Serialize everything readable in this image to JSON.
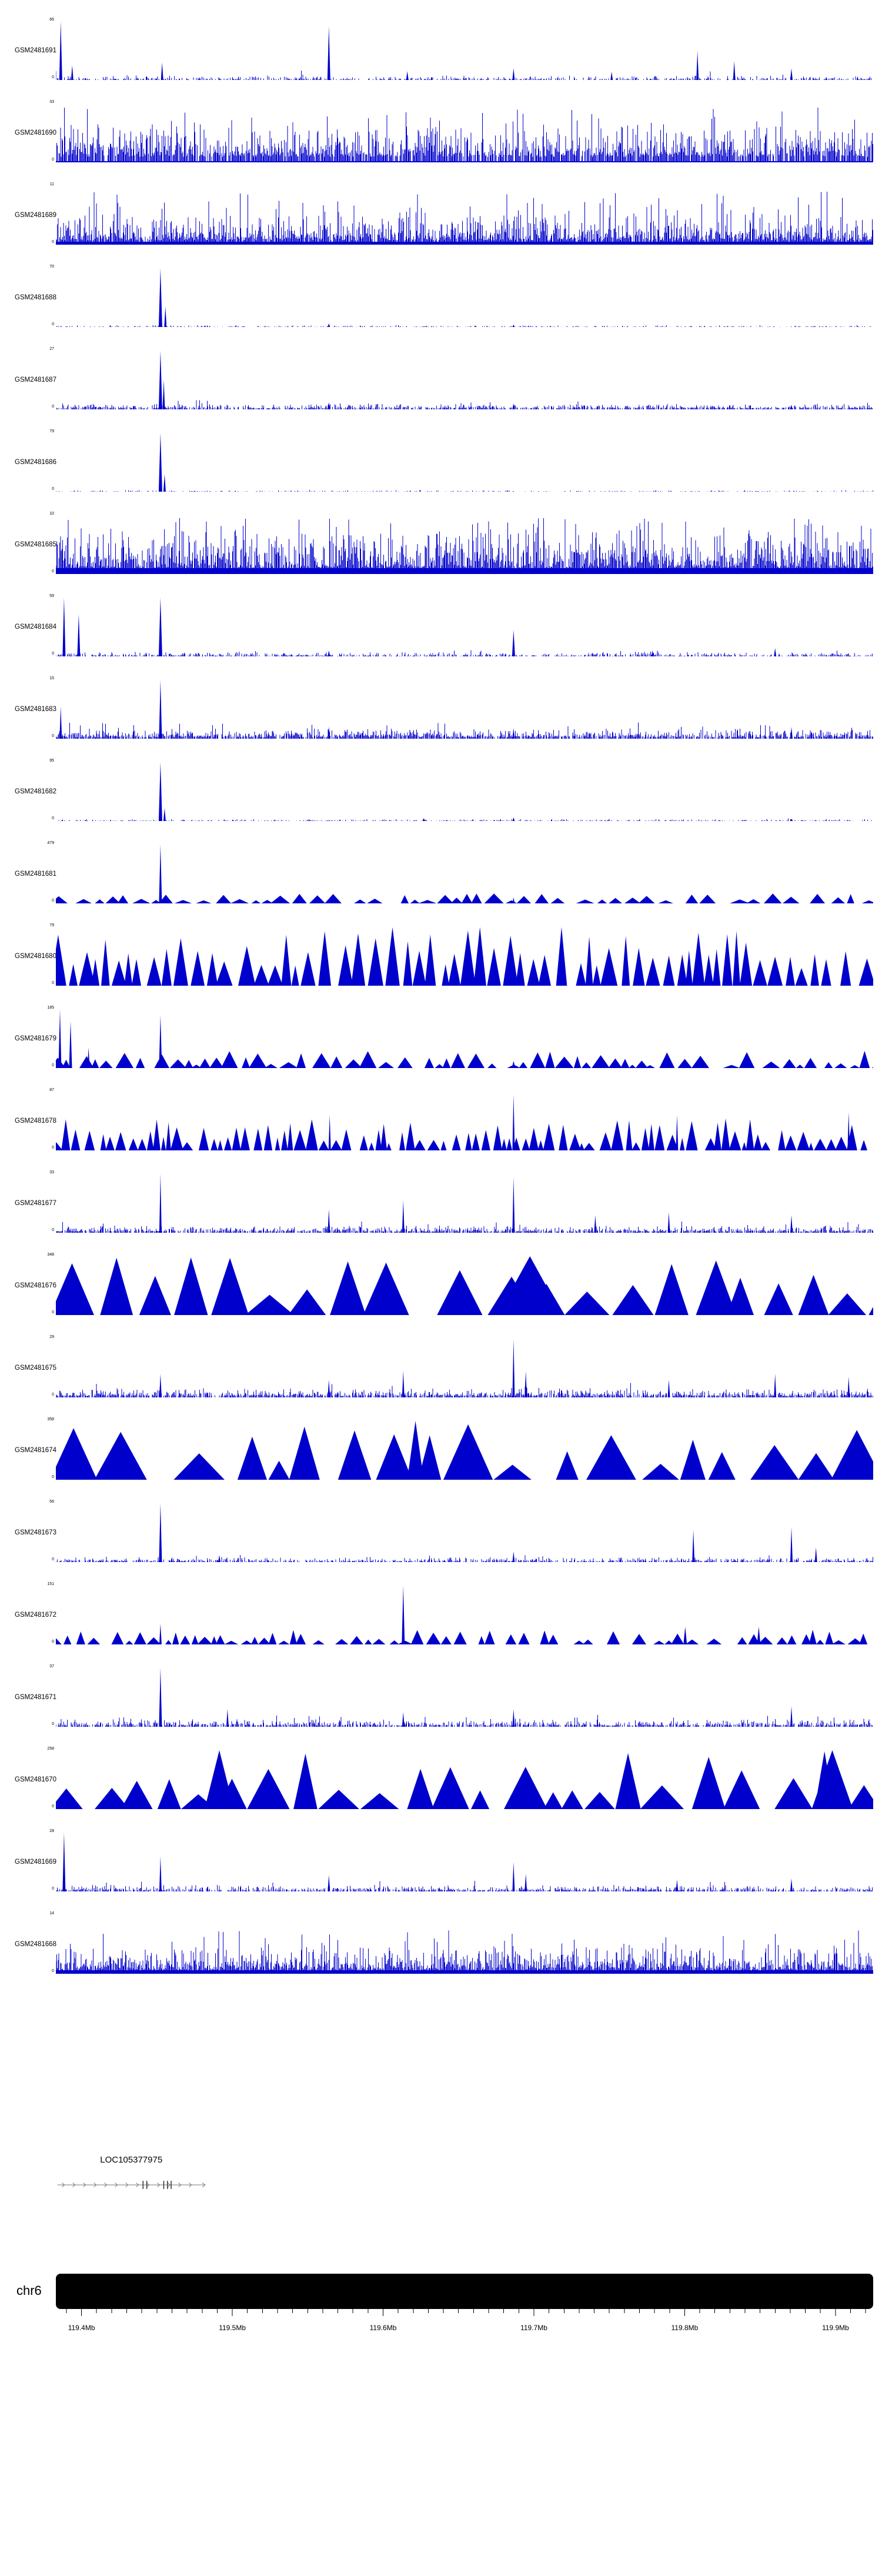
{
  "figure": {
    "background": "#ffffff",
    "signal_color": "#0000CC",
    "gene_color": "#7a7a7a",
    "exon_color": "#333333",
    "ideogram_color": "#000000"
  },
  "chart_data": {
    "type": "area",
    "description": "Genome browser read-coverage tracks over chr6 ~119.38-119.93 Mb for 24 GEO samples, with gene annotation and chromosome axis",
    "legend": "none",
    "grid": false,
    "x_axis": {
      "range_mb": [
        119.383,
        119.925
      ],
      "unit": "Mb",
      "ticks": [
        {
          "mb": 119.4,
          "label": "119.4Mb"
        },
        {
          "mb": 119.5,
          "label": "119.5Mb"
        },
        {
          "mb": 119.6,
          "label": "119.6Mb"
        },
        {
          "mb": 119.7,
          "label": "119.7Mb"
        },
        {
          "mb": 119.8,
          "label": "119.8Mb"
        },
        {
          "mb": 119.9,
          "label": "119.9Mb"
        }
      ],
      "minor_tick_step_mb": 0.01
    },
    "chromosome": {
      "name": "chr6"
    },
    "gene_track": {
      "label": "LOC105377975",
      "start_mb": 119.384,
      "end_mb": 119.482,
      "strand": "+",
      "exon_fracs": [
        0.58,
        0.605,
        0.72,
        0.745,
        0.77
      ]
    },
    "tracks": [
      {
        "id": "GSM2481691",
        "ymax": "66",
        "ymin": "0",
        "seed": 101,
        "noise": {
          "density": 0.5,
          "amp": 0.045,
          "spike_p": 0.012,
          "spike_amp": 0.18
        },
        "peaks": [
          {
            "x": 0.006,
            "h": 1.0,
            "w": 2.5
          },
          {
            "x": 0.02,
            "h": 0.25,
            "w": 2
          },
          {
            "x": 0.13,
            "h": 0.3,
            "w": 2
          },
          {
            "x": 0.334,
            "h": 0.92,
            "w": 2.5
          },
          {
            "x": 0.43,
            "h": 0.15,
            "w": 2
          },
          {
            "x": 0.56,
            "h": 0.2,
            "w": 2
          },
          {
            "x": 0.68,
            "h": 0.14,
            "w": 2
          },
          {
            "x": 0.785,
            "h": 0.5,
            "w": 2
          },
          {
            "x": 0.83,
            "h": 0.32,
            "w": 2
          },
          {
            "x": 0.9,
            "h": 0.2,
            "w": 2
          }
        ]
      },
      {
        "id": "GSM2481690",
        "ymax": "33",
        "ymin": "0",
        "seed": 102,
        "base": 0.02,
        "noise": {
          "density": 0.88,
          "amp": 0.38,
          "spike_p": 0.05,
          "spike_amp": 0.95
        }
      },
      {
        "id": "GSM2481689",
        "ymax": "11",
        "ymin": "0",
        "seed": 103,
        "base": 0.05,
        "noise": {
          "density": 0.92,
          "amp": 0.3,
          "spike_p": 0.07,
          "spike_amp": 0.9
        }
      },
      {
        "id": "GSM2481688",
        "ymax": "70",
        "ymin": "0",
        "seed": 104,
        "noise": {
          "density": 0.35,
          "amp": 0.018,
          "spike_p": 0.004,
          "spike_amp": 0.06
        },
        "peaks": [
          {
            "x": 0.128,
            "h": 1.0,
            "w": 3
          },
          {
            "x": 0.134,
            "h": 0.35,
            "w": 2
          },
          {
            "x": 0.334,
            "h": 0.06,
            "w": 2
          },
          {
            "x": 0.56,
            "h": 0.04,
            "w": 2
          }
        ]
      },
      {
        "id": "GSM2481687",
        "ymax": "27",
        "ymin": "0",
        "seed": 105,
        "noise": {
          "density": 0.7,
          "amp": 0.06,
          "spike_p": 0.02,
          "spike_amp": 0.16
        },
        "peaks": [
          {
            "x": 0.128,
            "h": 1.0,
            "w": 3
          },
          {
            "x": 0.132,
            "h": 0.5,
            "w": 2
          },
          {
            "x": 0.334,
            "h": 0.12,
            "w": 2
          },
          {
            "x": 0.56,
            "h": 0.1,
            "w": 2
          },
          {
            "x": 0.9,
            "h": 0.08,
            "w": 2
          }
        ]
      },
      {
        "id": "GSM2481686",
        "ymax": "79",
        "ymin": "0",
        "seed": 106,
        "noise": {
          "density": 0.3,
          "amp": 0.015,
          "spike_p": 0.003,
          "spike_amp": 0.05
        },
        "peaks": [
          {
            "x": 0.128,
            "h": 1.0,
            "w": 3
          },
          {
            "x": 0.133,
            "h": 0.3,
            "w": 2
          }
        ]
      },
      {
        "id": "GSM2481685",
        "ymax": "10",
        "ymin": "0",
        "seed": 107,
        "base": 0.1,
        "noise": {
          "density": 0.95,
          "amp": 0.42,
          "spike_p": 0.12,
          "spike_amp": 0.95
        }
      },
      {
        "id": "GSM2481684",
        "ymax": "59",
        "ymin": "0",
        "seed": 108,
        "noise": {
          "density": 0.55,
          "amp": 0.045,
          "spike_p": 0.01,
          "spike_amp": 0.12
        },
        "peaks": [
          {
            "x": 0.01,
            "h": 1.0,
            "w": 2.5
          },
          {
            "x": 0.028,
            "h": 0.72,
            "w": 2.5
          },
          {
            "x": 0.128,
            "h": 1.0,
            "w": 3
          },
          {
            "x": 0.334,
            "h": 0.1,
            "w": 2
          },
          {
            "x": 0.56,
            "h": 0.45,
            "w": 2.5
          },
          {
            "x": 0.73,
            "h": 0.1,
            "w": 2
          },
          {
            "x": 0.88,
            "h": 0.14,
            "w": 2
          }
        ]
      },
      {
        "id": "GSM2481683",
        "ymax": "15",
        "ymin": "0",
        "seed": 109,
        "noise": {
          "density": 0.82,
          "amp": 0.1,
          "spike_p": 0.03,
          "spike_amp": 0.28
        },
        "peaks": [
          {
            "x": 0.006,
            "h": 0.55,
            "w": 2
          },
          {
            "x": 0.128,
            "h": 1.0,
            "w": 2.5
          },
          {
            "x": 0.334,
            "h": 0.2,
            "w": 2
          },
          {
            "x": 0.56,
            "h": 0.18,
            "w": 2
          },
          {
            "x": 0.9,
            "h": 0.2,
            "w": 2
          }
        ]
      },
      {
        "id": "GSM2481682",
        "ymax": "95",
        "ymin": "0",
        "seed": 110,
        "noise": {
          "density": 0.45,
          "amp": 0.02,
          "spike_p": 0.005,
          "spike_amp": 0.06
        },
        "peaks": [
          {
            "x": 0.128,
            "h": 1.0,
            "w": 3
          },
          {
            "x": 0.133,
            "h": 0.22,
            "w": 2
          },
          {
            "x": 0.45,
            "h": 0.05,
            "w": 2
          },
          {
            "x": 0.56,
            "h": 0.06,
            "w": 2
          },
          {
            "x": 0.9,
            "h": 0.04,
            "w": 2
          }
        ]
      },
      {
        "id": "GSM2481681",
        "ymax": "479",
        "ymin": "0",
        "seed": 111,
        "triangles": {
          "hmin": 0.05,
          "hmax": 0.17,
          "wmin": 12,
          "wmax": 34,
          "gap_p": 0.35,
          "gap_w": 25,
          "pow": 1.2
        },
        "peaks": [
          {
            "x": 0.128,
            "h": 1.0,
            "w": 2.5
          },
          {
            "x": 0.56,
            "h": 0.1,
            "w": 2
          }
        ]
      },
      {
        "id": "GSM2481680",
        "ymax": "79",
        "ymin": "0",
        "seed": 112,
        "triangles": {
          "hmin": 0.3,
          "hmax": 1.0,
          "wmin": 12,
          "wmax": 30,
          "gap_p": 0.18,
          "gap_w": 18,
          "pow": 1.3
        }
      },
      {
        "id": "GSM2481679",
        "ymax": "185",
        "ymin": "0",
        "seed": 113,
        "triangles": {
          "hmin": 0.05,
          "hmax": 0.3,
          "wmin": 12,
          "wmax": 32,
          "gap_p": 0.3,
          "gap_w": 22,
          "pow": 1.5
        },
        "peaks": [
          {
            "x": 0.005,
            "h": 1.0,
            "w": 2.5
          },
          {
            "x": 0.018,
            "h": 0.8,
            "w": 2.5
          },
          {
            "x": 0.04,
            "h": 0.35,
            "w": 2
          },
          {
            "x": 0.128,
            "h": 0.9,
            "w": 2.5
          },
          {
            "x": 0.3,
            "h": 0.25,
            "w": 8
          },
          {
            "x": 0.56,
            "h": 0.12,
            "w": 3
          }
        ]
      },
      {
        "id": "GSM2481678",
        "ymax": "87",
        "ymin": "0",
        "seed": 114,
        "triangles": {
          "hmin": 0.12,
          "hmax": 0.55,
          "wmin": 8,
          "wmax": 22,
          "gap_p": 0.25,
          "gap_w": 15,
          "pow": 1.2
        },
        "peaks": [
          {
            "x": 0.335,
            "h": 0.6,
            "w": 2
          },
          {
            "x": 0.56,
            "h": 0.95,
            "w": 2
          },
          {
            "x": 0.76,
            "h": 0.6,
            "w": 2
          },
          {
            "x": 0.97,
            "h": 0.65,
            "w": 2
          }
        ]
      },
      {
        "id": "GSM2481677",
        "ymax": "33",
        "ymin": "0",
        "seed": 115,
        "noise": {
          "density": 0.75,
          "amp": 0.07,
          "spike_p": 0.02,
          "spike_amp": 0.2
        },
        "peaks": [
          {
            "x": 0.128,
            "h": 1.0,
            "w": 2
          },
          {
            "x": 0.334,
            "h": 0.4,
            "w": 2
          },
          {
            "x": 0.425,
            "h": 0.55,
            "w": 2
          },
          {
            "x": 0.56,
            "h": 0.95,
            "w": 2
          },
          {
            "x": 0.66,
            "h": 0.3,
            "w": 2
          },
          {
            "x": 0.75,
            "h": 0.35,
            "w": 2
          },
          {
            "x": 0.9,
            "h": 0.3,
            "w": 2
          }
        ]
      },
      {
        "id": "GSM2481676",
        "ymax": "348",
        "ymin": "0",
        "seed": 116,
        "triangles": {
          "hmin": 0.3,
          "hmax": 1.0,
          "wmin": 40,
          "wmax": 95,
          "gap_p": 0.3,
          "gap_w": 40,
          "pow": 1.1
        },
        "peaks": [
          {
            "x": 0.58,
            "h": 1.0,
            "w": 55
          }
        ]
      },
      {
        "id": "GSM2481675",
        "ymax": "29",
        "ymin": "0",
        "seed": 117,
        "noise": {
          "density": 0.8,
          "amp": 0.09,
          "spike_p": 0.025,
          "spike_amp": 0.25
        },
        "peaks": [
          {
            "x": 0.128,
            "h": 0.4,
            "w": 2
          },
          {
            "x": 0.334,
            "h": 0.3,
            "w": 2
          },
          {
            "x": 0.425,
            "h": 0.45,
            "w": 2
          },
          {
            "x": 0.56,
            "h": 1.0,
            "w": 2
          },
          {
            "x": 0.575,
            "h": 0.45,
            "w": 2
          },
          {
            "x": 0.75,
            "h": 0.3,
            "w": 2
          },
          {
            "x": 0.88,
            "h": 0.4,
            "w": 2
          },
          {
            "x": 0.97,
            "h": 0.35,
            "w": 2
          }
        ]
      },
      {
        "id": "GSM2481674",
        "ymax": "358",
        "ymin": "0",
        "seed": 118,
        "triangles": {
          "hmin": 0.25,
          "hmax": 0.95,
          "wmin": 35,
          "wmax": 90,
          "gap_p": 0.35,
          "gap_w": 45,
          "pow": 1.2
        },
        "peaks": [
          {
            "x": 0.44,
            "h": 1.0,
            "w": 14
          }
        ]
      },
      {
        "id": "GSM2481673",
        "ymax": "56",
        "ymin": "0",
        "seed": 119,
        "noise": {
          "density": 0.6,
          "amp": 0.05,
          "spike_p": 0.012,
          "spike_amp": 0.15
        },
        "peaks": [
          {
            "x": 0.128,
            "h": 1.0,
            "w": 2.5
          },
          {
            "x": 0.2,
            "h": 0.12,
            "w": 2
          },
          {
            "x": 0.56,
            "h": 0.18,
            "w": 2
          },
          {
            "x": 0.78,
            "h": 0.55,
            "w": 2
          },
          {
            "x": 0.9,
            "h": 0.6,
            "w": 2
          },
          {
            "x": 0.93,
            "h": 0.25,
            "w": 2
          }
        ]
      },
      {
        "id": "GSM2481672",
        "ymax": "151",
        "ymin": "0",
        "seed": 120,
        "triangles": {
          "hmin": 0.06,
          "hmax": 0.25,
          "wmin": 10,
          "wmax": 26,
          "gap_p": 0.35,
          "gap_w": 25,
          "pow": 1.3
        },
        "peaks": [
          {
            "x": 0.128,
            "h": 0.35,
            "w": 2
          },
          {
            "x": 0.425,
            "h": 1.0,
            "w": 2.5
          },
          {
            "x": 0.77,
            "h": 0.3,
            "w": 3
          },
          {
            "x": 0.86,
            "h": 0.3,
            "w": 3
          }
        ]
      },
      {
        "id": "GSM2481671",
        "ymax": "37",
        "ymin": "0",
        "seed": 121,
        "noise": {
          "density": 0.72,
          "amp": 0.075,
          "spike_p": 0.02,
          "spike_amp": 0.2
        },
        "peaks": [
          {
            "x": 0.128,
            "h": 1.0,
            "w": 2.5
          },
          {
            "x": 0.21,
            "h": 0.3,
            "w": 2
          },
          {
            "x": 0.425,
            "h": 0.25,
            "w": 2
          },
          {
            "x": 0.56,
            "h": 0.3,
            "w": 2
          },
          {
            "x": 0.9,
            "h": 0.35,
            "w": 2
          }
        ]
      },
      {
        "id": "GSM2481670",
        "ymax": "258",
        "ymin": "0",
        "seed": 122,
        "triangles": {
          "hmin": 0.25,
          "hmax": 1.0,
          "wmin": 30,
          "wmax": 80,
          "gap_p": 0.3,
          "gap_w": 40,
          "pow": 1.1
        },
        "peaks": [
          {
            "x": 0.2,
            "h": 1.0,
            "w": 25
          },
          {
            "x": 0.95,
            "h": 1.0,
            "w": 35
          }
        ]
      },
      {
        "id": "GSM2481669",
        "ymax": "28",
        "ymin": "0",
        "seed": 123,
        "noise": {
          "density": 0.65,
          "amp": 0.065,
          "spike_p": 0.018,
          "spike_amp": 0.18
        },
        "peaks": [
          {
            "x": 0.01,
            "h": 1.0,
            "w": 2.5
          },
          {
            "x": 0.128,
            "h": 0.6,
            "w": 2
          },
          {
            "x": 0.334,
            "h": 0.28,
            "w": 2
          },
          {
            "x": 0.56,
            "h": 0.5,
            "w": 2
          },
          {
            "x": 0.575,
            "h": 0.3,
            "w": 2
          },
          {
            "x": 0.76,
            "h": 0.2,
            "w": 2
          },
          {
            "x": 0.9,
            "h": 0.22,
            "w": 2
          }
        ]
      },
      {
        "id": "GSM2481668",
        "ymax": "14",
        "ymin": "0",
        "seed": 124,
        "base": 0.06,
        "noise": {
          "density": 0.9,
          "amp": 0.28,
          "spike_p": 0.05,
          "spike_amp": 0.75
        }
      }
    ]
  }
}
